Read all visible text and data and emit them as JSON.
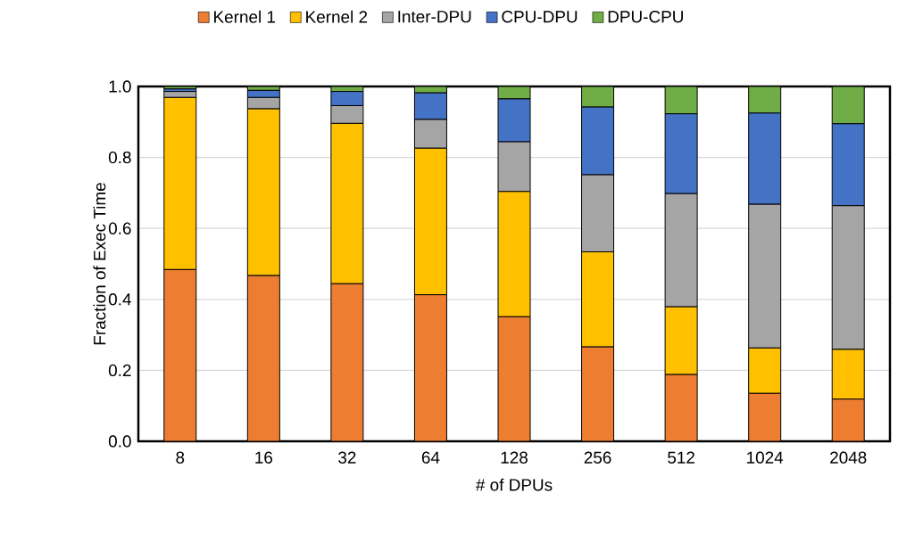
{
  "chart_data": {
    "type": "bar",
    "stacked": true,
    "xlabel": "# of DPUs",
    "ylabel": "Fraction of Exec Time",
    "categories": [
      "8",
      "16",
      "32",
      "64",
      "128",
      "256",
      "512",
      "1024",
      "2048"
    ],
    "series": [
      {
        "name": "Kernel 1",
        "color": "#ed7d31",
        "values": [
          0.484,
          0.467,
          0.444,
          0.413,
          0.351,
          0.266,
          0.188,
          0.135,
          0.119
        ]
      },
      {
        "name": "Kernel 2",
        "color": "#ffc000",
        "values": [
          0.485,
          0.47,
          0.452,
          0.413,
          0.353,
          0.268,
          0.191,
          0.128,
          0.14
        ]
      },
      {
        "name": "Inter-DPU",
        "color": "#a5a5a5",
        "values": [
          0.017,
          0.032,
          0.05,
          0.081,
          0.14,
          0.217,
          0.319,
          0.405,
          0.405
        ]
      },
      {
        "name": "CPU-DPU",
        "color": "#4472c4",
        "values": [
          0.007,
          0.02,
          0.04,
          0.075,
          0.121,
          0.191,
          0.225,
          0.257,
          0.231
        ]
      },
      {
        "name": "DPU-CPU",
        "color": "#70ad47",
        "values": [
          0.007,
          0.011,
          0.014,
          0.018,
          0.035,
          0.058,
          0.077,
          0.075,
          0.105
        ]
      }
    ],
    "ylim": [
      0,
      1
    ],
    "yticks": [
      {
        "value": 0,
        "label": "0.0"
      },
      {
        "value": 0.2,
        "label": "0.2"
      },
      {
        "value": 0.4,
        "label": "0.4"
      },
      {
        "value": 0.6,
        "label": "0.6"
      },
      {
        "value": 0.8,
        "label": "0.8"
      },
      {
        "value": 1,
        "label": "1.0"
      }
    ],
    "grid": "y",
    "legend": "top"
  }
}
